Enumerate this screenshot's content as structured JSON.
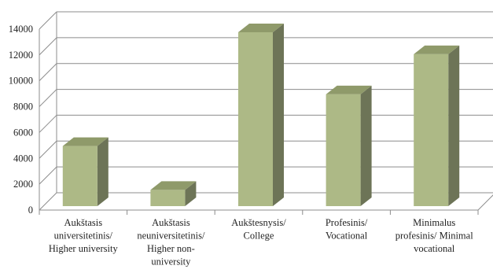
{
  "chart_data": {
    "type": "bar",
    "style": "3d-column",
    "grid": true,
    "legend": "none",
    "title": "",
    "xlabel": "",
    "ylabel": "",
    "ylim": [
      0,
      14000
    ],
    "yticks": [
      0,
      2000,
      4000,
      6000,
      8000,
      10000,
      12000,
      14000
    ],
    "categories": [
      [
        "Aukštasis",
        "universitetinis/",
        "Higher university"
      ],
      [
        "Aukštasis",
        "neuniversitetinis/",
        "Higher non-",
        "university"
      ],
      [
        "Aukštesnysis/",
        "College"
      ],
      [
        "Profesinis/",
        "Vocational"
      ],
      [
        "Minimalus",
        "profesinis/ Minimal",
        "vocational"
      ]
    ],
    "values": [
      5200,
      1800,
      14000,
      9200,
      12300
    ],
    "colors": {
      "bar_front": "#adb986",
      "bar_top": "#8f9a6a",
      "bar_side": "#6d7457",
      "grid": "#8c8c8c"
    }
  }
}
